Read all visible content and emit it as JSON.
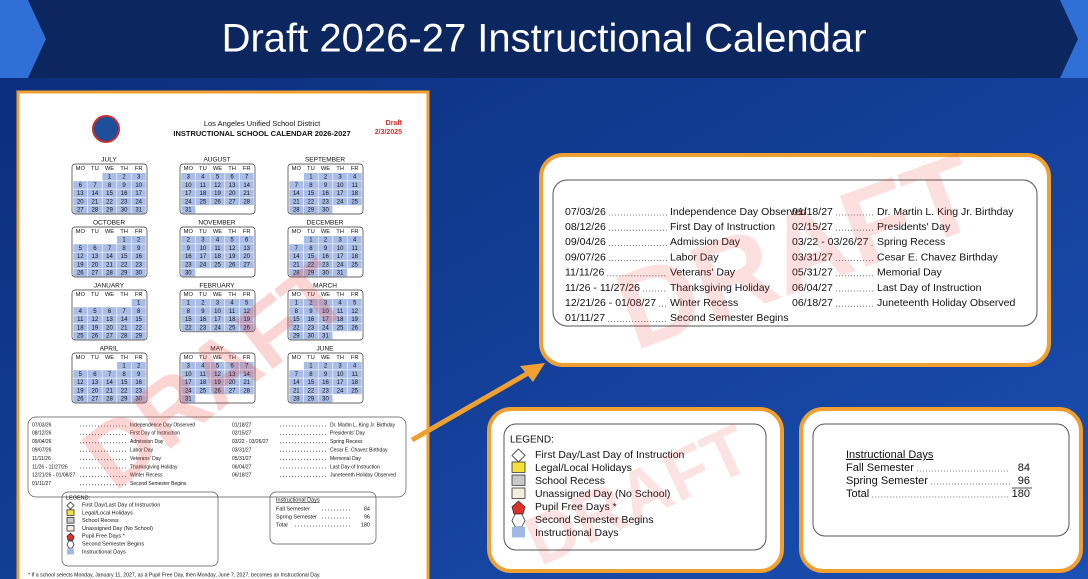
{
  "title": "Draft 2026-27  Instructional Calendar",
  "document": {
    "district": "Los Angeles Unified School District",
    "heading": "INSTRUCTIONAL SCHOOL CALENDAR 2026-2027",
    "draft": "Draft",
    "date": "2/3/2025",
    "watermark": "DRAFT",
    "weekdays": [
      "MO",
      "TU",
      "WE",
      "TH",
      "FR"
    ],
    "months": [
      {
        "name": "JULY",
        "weeks": [
          [
            null,
            null,
            1,
            2,
            3
          ],
          [
            6,
            7,
            8,
            9,
            10
          ],
          [
            13,
            14,
            15,
            16,
            17
          ],
          [
            20,
            21,
            22,
            23,
            24
          ],
          [
            27,
            28,
            29,
            30,
            31
          ]
        ]
      },
      {
        "name": "AUGUST",
        "weeks": [
          [
            3,
            4,
            5,
            6,
            7
          ],
          [
            10,
            11,
            12,
            13,
            14
          ],
          [
            17,
            18,
            19,
            20,
            21
          ],
          [
            24,
            25,
            26,
            27,
            28
          ],
          [
            31,
            null,
            null,
            null,
            null
          ]
        ]
      },
      {
        "name": "SEPTEMBER",
        "weeks": [
          [
            null,
            1,
            2,
            3,
            4
          ],
          [
            7,
            8,
            9,
            10,
            11
          ],
          [
            14,
            15,
            16,
            17,
            18
          ],
          [
            21,
            22,
            23,
            24,
            25
          ],
          [
            28,
            29,
            30,
            null,
            null
          ]
        ]
      },
      {
        "name": "OCTOBER",
        "weeks": [
          [
            null,
            null,
            null,
            1,
            2
          ],
          [
            5,
            6,
            7,
            8,
            9
          ],
          [
            12,
            13,
            14,
            15,
            16
          ],
          [
            19,
            20,
            21,
            22,
            23
          ],
          [
            26,
            27,
            28,
            29,
            30
          ]
        ]
      },
      {
        "name": "NOVEMBER",
        "weeks": [
          [
            2,
            3,
            4,
            5,
            6
          ],
          [
            9,
            10,
            11,
            12,
            13
          ],
          [
            16,
            17,
            18,
            19,
            20
          ],
          [
            23,
            24,
            25,
            26,
            27
          ],
          [
            30,
            null,
            null,
            null,
            null
          ]
        ]
      },
      {
        "name": "DECEMBER",
        "weeks": [
          [
            null,
            1,
            2,
            3,
            4
          ],
          [
            7,
            8,
            9,
            10,
            11
          ],
          [
            14,
            15,
            16,
            17,
            18
          ],
          [
            21,
            22,
            23,
            24,
            25
          ],
          [
            28,
            29,
            30,
            31,
            null
          ]
        ]
      },
      {
        "name": "JANUARY",
        "weeks": [
          [
            null,
            null,
            null,
            null,
            1
          ],
          [
            4,
            5,
            6,
            7,
            8
          ],
          [
            11,
            12,
            13,
            14,
            15
          ],
          [
            18,
            19,
            20,
            21,
            22
          ],
          [
            25,
            26,
            27,
            28,
            29
          ]
        ]
      },
      {
        "name": "FEBRUARY",
        "weeks": [
          [
            1,
            2,
            3,
            4,
            5
          ],
          [
            8,
            9,
            10,
            11,
            12
          ],
          [
            15,
            16,
            17,
            18,
            19
          ],
          [
            22,
            23,
            24,
            25,
            26
          ]
        ]
      },
      {
        "name": "MARCH",
        "weeks": [
          [
            1,
            2,
            3,
            4,
            5
          ],
          [
            8,
            9,
            10,
            11,
            12
          ],
          [
            15,
            16,
            17,
            18,
            19
          ],
          [
            22,
            23,
            24,
            25,
            26
          ],
          [
            29,
            30,
            31,
            null,
            null
          ]
        ]
      },
      {
        "name": "APRIL",
        "weeks": [
          [
            null,
            null,
            null,
            1,
            2
          ],
          [
            5,
            6,
            7,
            8,
            9
          ],
          [
            12,
            13,
            14,
            15,
            16
          ],
          [
            19,
            20,
            21,
            22,
            23
          ],
          [
            26,
            27,
            28,
            29,
            30
          ]
        ]
      },
      {
        "name": "MAY",
        "weeks": [
          [
            3,
            4,
            5,
            6,
            7
          ],
          [
            10,
            11,
            12,
            13,
            14
          ],
          [
            17,
            18,
            19,
            20,
            21
          ],
          [
            24,
            25,
            26,
            27,
            28
          ],
          [
            31,
            null,
            null,
            null,
            null
          ]
        ]
      },
      {
        "name": "JUNE",
        "weeks": [
          [
            null,
            1,
            2,
            3,
            4
          ],
          [
            7,
            8,
            9,
            10,
            11
          ],
          [
            14,
            15,
            16,
            17,
            18
          ],
          [
            21,
            22,
            23,
            24,
            25
          ],
          [
            28,
            29,
            30,
            null,
            null
          ]
        ]
      }
    ],
    "footnote": "* If a school selects Monday, January 11, 2027, as a Pupil Free Day, then Monday, June 7, 2027, becomes an Instructional Day."
  },
  "holidays": [
    {
      "date": "07/03/26",
      "name": "Independence Day Observed"
    },
    {
      "date": "08/12/26",
      "name": "First Day of Instruction"
    },
    {
      "date": "09/04/26",
      "name": "Admission Day"
    },
    {
      "date": "09/07/26",
      "name": "Labor Day"
    },
    {
      "date": "11/11/26",
      "name": "Veterans' Day"
    },
    {
      "date": "11/26 - 11/27/26",
      "name": "Thanksgiving Holiday"
    },
    {
      "date": "12/21/26 - 01/08/27",
      "name": "Winter Recess"
    },
    {
      "date": "01/11/27",
      "name": "Second Semester Begins"
    },
    {
      "date": "01/18/27",
      "name": "Dr. Martin L. King Jr. Birthday"
    },
    {
      "date": "02/15/27",
      "name": "Presidents' Day"
    },
    {
      "date": "03/22 - 03/26/27",
      "name": "Spring Recess"
    },
    {
      "date": "03/31/27",
      "name": "Cesar E. Chavez Birthday"
    },
    {
      "date": "05/31/27",
      "name": "Memorial Day"
    },
    {
      "date": "06/04/27",
      "name": "Last Day of Instruction"
    },
    {
      "date": "06/18/27",
      "name": "Juneteenth Holiday Observed"
    }
  ],
  "legend": {
    "title": "LEGEND:",
    "items": [
      "First Day/Last Day of Instruction",
      "Legal/Local Holidays",
      "School Recess",
      "Unassigned Day (No School)",
      "Pupil Free Days *",
      "Second Semester Begins",
      "Instructional Days"
    ]
  },
  "instructional_days": {
    "title": "Instructional Days",
    "rows": [
      {
        "label": "Fall Semester",
        "days": 84
      },
      {
        "label": "Spring Semester",
        "days": 96
      },
      {
        "label": "Total",
        "days": 180
      }
    ]
  }
}
